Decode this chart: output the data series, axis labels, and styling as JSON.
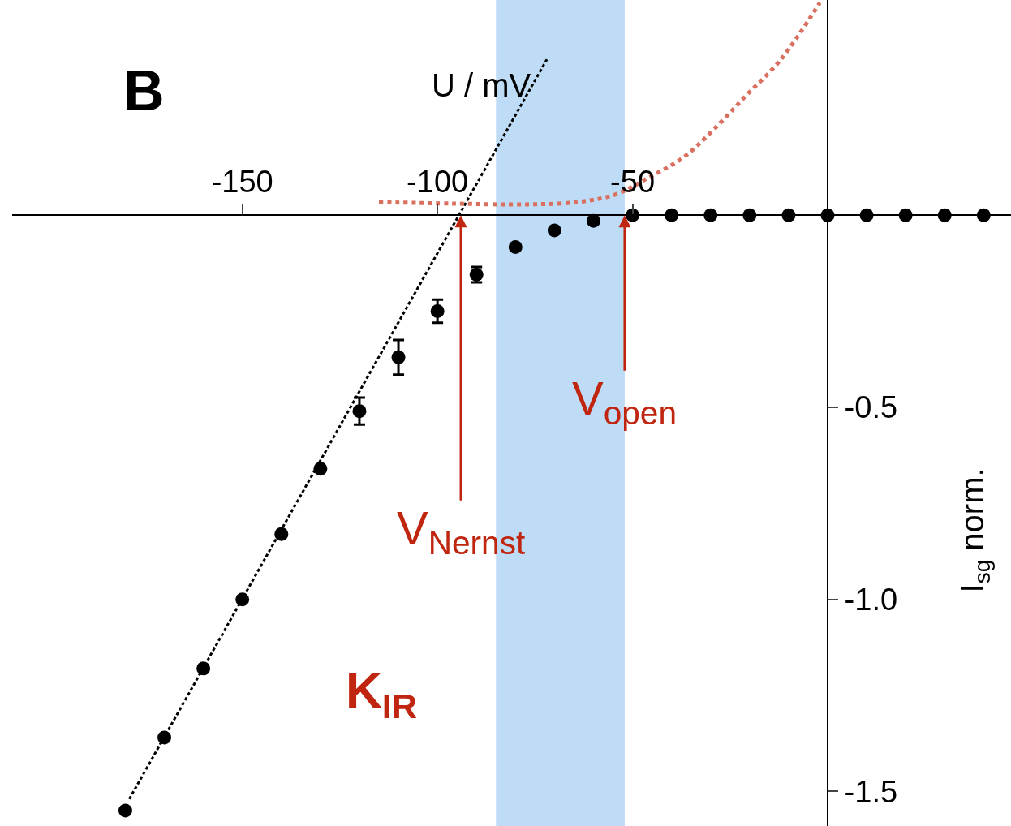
{
  "chart_data": {
    "type": "scatter",
    "xlabel": "U / mV",
    "ylabel": "I$_{sg}$ norm.",
    "annotations": [
      "B",
      {
        "text": "V$_{Nernst}$",
        "x": -94,
        "y": 0
      },
      {
        "text": "V$_{open}$",
        "x": -52,
        "y": 0
      },
      "K$_{IR}$"
    ],
    "xlim": [
      -209,
      47
    ],
    "ylim": [
      -1.59,
      0.56
    ],
    "xticks": [
      -150,
      -100,
      -50
    ],
    "yticks": [
      -0.5,
      {
        "value": -1.0,
        "label": "-1.0"
      },
      -1.5
    ],
    "grid": false,
    "bands": [
      {
        "axis": "x",
        "from": -85,
        "to": -52,
        "color": "#b4d6f6"
      }
    ],
    "series": [
      {
        "color": "#000000",
        "marker": "circle",
        "x": [
          -180,
          -170,
          -160,
          -150,
          -140,
          -130,
          -120,
          -110,
          -100,
          -90,
          -80,
          -70,
          -60,
          -50,
          -40,
          -30,
          -20,
          -10,
          0,
          10,
          20,
          30,
          40
        ],
        "values": [
          -1.55,
          -1.36,
          -1.18,
          -1.0,
          -0.83,
          -0.66,
          -0.51,
          -0.37,
          -0.25,
          -0.155,
          -0.083,
          -0.04,
          -0.015,
          0,
          0,
          0,
          0,
          0,
          0,
          0,
          0,
          0,
          0
        ],
        "errors": [
          null,
          null,
          null,
          null,
          null,
          null,
          0.035,
          0.045,
          0.03,
          0.02,
          null,
          null,
          null,
          null,
          null,
          null,
          null,
          null,
          null,
          null,
          null,
          null,
          null
        ]
      },
      {
        "type": "line",
        "color": "#000000",
        "marker": "none",
        "line_style": "dotted",
        "x": [
          -179,
          -71.7
        ],
        "values": [
          -1.52,
          0.41
        ]
      },
      {
        "type": "line",
        "color": "#d9705f",
        "marker": "none",
        "line_style": "dotted",
        "x": [
          -115,
          -96,
          -77,
          -64,
          -54,
          -46,
          -37,
          -29,
          -21,
          -12,
          -2
        ],
        "values": [
          0.034,
          0.03,
          0.028,
          0.034,
          0.055,
          0.097,
          0.15,
          0.225,
          0.31,
          0.405,
          0.553
        ]
      }
    ]
  }
}
